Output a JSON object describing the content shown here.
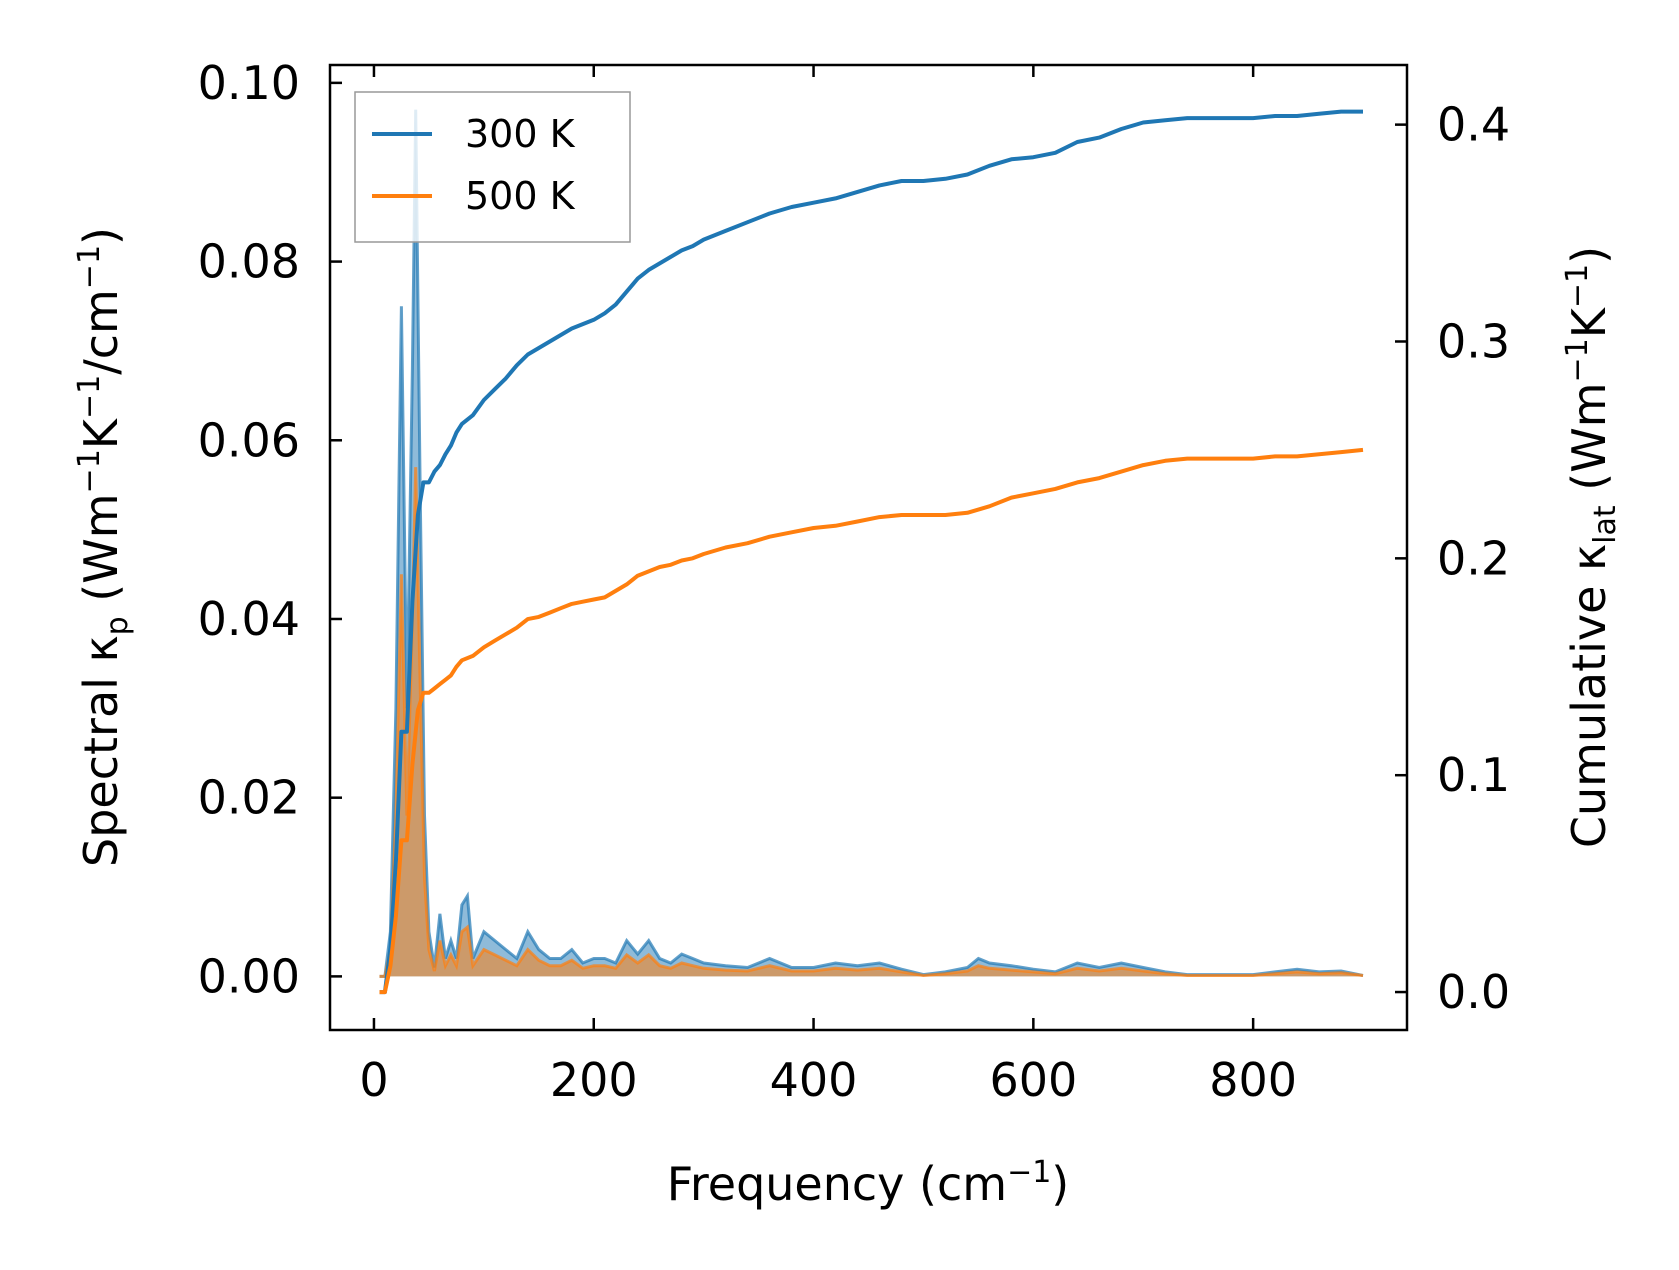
{
  "chart_data": {
    "type": "line",
    "xlabel": {
      "base": "Frequency (cm",
      "sup": "−1",
      "tail": ")"
    },
    "ylabel_left": {
      "a": "Spectral κ",
      "sub": "p",
      "b": " (Wm",
      "sup1": "−1",
      "c": "K",
      "sup2": "−1",
      "d": "/cm",
      "sup3": "−1",
      "e": ")"
    },
    "ylabel_right": {
      "a": "Cumulative κ",
      "sub": "lat",
      "b": " (Wm",
      "sup1": "−1",
      "c": "K",
      "sup2": "−1",
      "d": ")"
    },
    "xlim": [
      -40,
      940
    ],
    "ylim_left": [
      -0.006,
      0.102
    ],
    "ylim_right": [
      -0.0175,
      0.4275
    ],
    "x_ticks": [
      0,
      200,
      400,
      600,
      800
    ],
    "x_tick_labels": [
      "0",
      "200",
      "400",
      "600",
      "800"
    ],
    "y_left_ticks": [
      0,
      0.02,
      0.04,
      0.06,
      0.08,
      0.1
    ],
    "y_left_tick_labels": [
      "0.00",
      "0.02",
      "0.04",
      "0.06",
      "0.08",
      "0.10"
    ],
    "y_right_ticks": [
      0,
      0.1,
      0.2,
      0.3,
      0.4
    ],
    "y_right_tick_labels": [
      "0.0",
      "0.1",
      "0.2",
      "0.3",
      "0.4"
    ],
    "legend": {
      "position": "top-left",
      "entries": [
        {
          "label": "300 K",
          "color": "#1f77b4"
        },
        {
          "label": "500 K",
          "color": "#ff7f0e"
        }
      ]
    },
    "series": [
      {
        "name": "300 K",
        "color": "#1f77b4",
        "spectral": {
          "x": [
            5,
            10,
            15,
            20,
            25,
            30,
            35,
            38,
            42,
            46,
            50,
            55,
            60,
            65,
            70,
            75,
            80,
            85,
            90,
            100,
            110,
            120,
            130,
            140,
            150,
            160,
            170,
            180,
            190,
            200,
            210,
            220,
            230,
            240,
            250,
            260,
            270,
            280,
            290,
            300,
            320,
            340,
            360,
            380,
            400,
            420,
            440,
            460,
            480,
            500,
            520,
            540,
            550,
            560,
            580,
            600,
            620,
            640,
            660,
            680,
            700,
            720,
            740,
            760,
            780,
            800,
            820,
            840,
            860,
            880,
            900
          ],
          "y": [
            0,
            0,
            0.005,
            0.03,
            0.075,
            0.03,
            0.068,
            0.097,
            0.055,
            0.018,
            0.005,
            0.001,
            0.007,
            0.002,
            0.004,
            0.002,
            0.008,
            0.009,
            0.002,
            0.005,
            0.004,
            0.003,
            0.002,
            0.005,
            0.003,
            0.002,
            0.002,
            0.003,
            0.0015,
            0.002,
            0.002,
            0.0015,
            0.004,
            0.0025,
            0.004,
            0.002,
            0.0015,
            0.0025,
            0.002,
            0.0015,
            0.0012,
            0.001,
            0.002,
            0.001,
            0.001,
            0.0015,
            0.0012,
            0.0015,
            0.0008,
            0.0002,
            0.0005,
            0.001,
            0.002,
            0.0015,
            0.0012,
            0.0008,
            0.0005,
            0.0015,
            0.001,
            0.0015,
            0.001,
            0.0005,
            0.0002,
            0.0002,
            0.0002,
            0.0002,
            0.0005,
            0.0008,
            0.0005,
            0.0006,
            0.0001
          ]
        },
        "cumulative": {
          "x": [
            5,
            10,
            15,
            20,
            25,
            30,
            35,
            40,
            45,
            50,
            55,
            60,
            65,
            70,
            75,
            80,
            90,
            100,
            110,
            120,
            130,
            140,
            150,
            160,
            170,
            180,
            190,
            200,
            210,
            220,
            230,
            240,
            250,
            260,
            270,
            280,
            290,
            300,
            320,
            340,
            360,
            380,
            400,
            420,
            440,
            460,
            480,
            500,
            520,
            540,
            560,
            580,
            600,
            620,
            640,
            660,
            680,
            700,
            720,
            740,
            760,
            780,
            800,
            820,
            840,
            860,
            880,
            900
          ],
          "y": [
            0,
            0,
            0.02,
            0.06,
            0.12,
            0.12,
            0.18,
            0.22,
            0.235,
            0.235,
            0.24,
            0.243,
            0.248,
            0.252,
            0.258,
            0.262,
            0.266,
            0.273,
            0.278,
            0.283,
            0.289,
            0.294,
            0.297,
            0.3,
            0.303,
            0.306,
            0.308,
            0.31,
            0.313,
            0.317,
            0.323,
            0.329,
            0.333,
            0.336,
            0.339,
            0.342,
            0.344,
            0.347,
            0.351,
            0.355,
            0.359,
            0.362,
            0.364,
            0.366,
            0.369,
            0.372,
            0.374,
            0.374,
            0.375,
            0.377,
            0.381,
            0.384,
            0.385,
            0.387,
            0.392,
            0.394,
            0.398,
            0.401,
            0.402,
            0.403,
            0.403,
            0.403,
            0.403,
            0.404,
            0.404,
            0.405,
            0.406,
            0.406
          ]
        }
      },
      {
        "name": "500 K",
        "color": "#ff7f0e",
        "spectral": {
          "x": [
            5,
            10,
            15,
            20,
            25,
            30,
            35,
            38,
            42,
            46,
            50,
            55,
            60,
            65,
            70,
            75,
            80,
            85,
            90,
            100,
            110,
            120,
            130,
            140,
            150,
            160,
            170,
            180,
            190,
            200,
            210,
            220,
            230,
            240,
            250,
            260,
            270,
            280,
            290,
            300,
            320,
            340,
            360,
            380,
            400,
            420,
            440,
            460,
            480,
            500,
            520,
            540,
            550,
            560,
            580,
            600,
            620,
            640,
            660,
            680,
            700,
            720,
            740,
            760,
            780,
            800,
            820,
            840,
            860,
            880,
            900
          ],
          "y": [
            0,
            0,
            0.003,
            0.018,
            0.045,
            0.018,
            0.04,
            0.057,
            0.033,
            0.011,
            0.003,
            0.0006,
            0.004,
            0.0012,
            0.0024,
            0.0012,
            0.005,
            0.0055,
            0.0012,
            0.003,
            0.0024,
            0.0018,
            0.0012,
            0.003,
            0.0018,
            0.0012,
            0.0012,
            0.0018,
            0.0009,
            0.0012,
            0.0012,
            0.0009,
            0.0024,
            0.0015,
            0.0024,
            0.0012,
            0.0009,
            0.0015,
            0.0012,
            0.0009,
            0.0007,
            0.0006,
            0.0012,
            0.0006,
            0.0006,
            0.0009,
            0.0007,
            0.0009,
            0.0005,
            0.0001,
            0.0003,
            0.0006,
            0.0012,
            0.0009,
            0.0007,
            0.0005,
            0.0003,
            0.0009,
            0.0006,
            0.0009,
            0.0006,
            0.0003,
            0.0001,
            0.0001,
            0.0001,
            0.0001,
            0.0003,
            0.0005,
            0.0003,
            0.0004,
            0.0001
          ]
        },
        "cumulative": {
          "x": [
            5,
            10,
            15,
            20,
            25,
            30,
            35,
            40,
            45,
            50,
            55,
            60,
            65,
            70,
            75,
            80,
            90,
            100,
            110,
            120,
            130,
            140,
            150,
            160,
            170,
            180,
            190,
            200,
            210,
            220,
            230,
            240,
            250,
            260,
            270,
            280,
            290,
            300,
            320,
            340,
            360,
            380,
            400,
            420,
            440,
            460,
            480,
            500,
            520,
            540,
            560,
            580,
            600,
            620,
            640,
            660,
            680,
            700,
            720,
            740,
            760,
            780,
            800,
            820,
            840,
            860,
            880,
            900
          ],
          "y": [
            0,
            0,
            0.012,
            0.035,
            0.07,
            0.07,
            0.105,
            0.13,
            0.138,
            0.138,
            0.14,
            0.142,
            0.144,
            0.146,
            0.15,
            0.153,
            0.155,
            0.159,
            0.162,
            0.165,
            0.168,
            0.172,
            0.173,
            0.175,
            0.177,
            0.179,
            0.18,
            0.181,
            0.182,
            0.185,
            0.188,
            0.192,
            0.194,
            0.196,
            0.197,
            0.199,
            0.2,
            0.202,
            0.205,
            0.207,
            0.21,
            0.212,
            0.214,
            0.215,
            0.217,
            0.219,
            0.22,
            0.22,
            0.22,
            0.221,
            0.224,
            0.228,
            0.23,
            0.232,
            0.235,
            0.237,
            0.24,
            0.243,
            0.245,
            0.246,
            0.246,
            0.246,
            0.246,
            0.247,
            0.247,
            0.248,
            0.249,
            0.25
          ]
        }
      }
    ]
  }
}
